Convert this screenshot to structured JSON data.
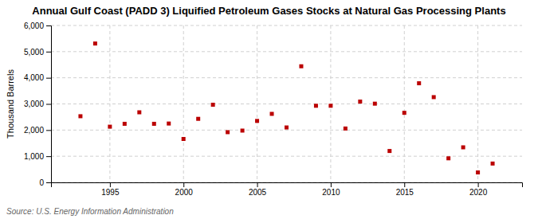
{
  "chart_data": {
    "type": "scatter",
    "title": "Annual Gulf Coast (PADD 3) Liquified Petroleum Gases Stocks at Natural Gas Processing Plants",
    "ylabel": "Thousand Barrels",
    "source": "Source: U.S. Energy Information Administration",
    "x": [
      1993,
      1994,
      1995,
      1996,
      1997,
      1998,
      1999,
      2000,
      2001,
      2002,
      2003,
      2004,
      2005,
      2006,
      2007,
      2008,
      2009,
      2010,
      2011,
      2012,
      2013,
      2014,
      2015,
      2016,
      2017,
      2018,
      2019,
      2020,
      2021
    ],
    "values": [
      2530,
      5310,
      2130,
      2240,
      2680,
      2240,
      2250,
      1660,
      2430,
      2970,
      1920,
      1980,
      2350,
      2620,
      2100,
      4440,
      2930,
      2930,
      2060,
      3090,
      3010,
      1200,
      2660,
      3790,
      3260,
      920,
      1340,
      380,
      720
    ],
    "color": "#bb0000",
    "marker": "square",
    "xlim": [
      1991,
      2023
    ],
    "xticks": [
      1995,
      2000,
      2005,
      2010,
      2015,
      2020
    ],
    "ylim": [
      0,
      6000
    ],
    "yticks": [
      0,
      {
        "value": 1000,
        "label": "1,000"
      },
      {
        "value": 2000,
        "label": "2,000"
      },
      {
        "value": 3000,
        "label": "3,000"
      },
      {
        "value": 4000,
        "label": "4,000"
      },
      {
        "value": 5000,
        "label": "5,000"
      },
      {
        "value": 6000,
        "label": "6,000"
      }
    ],
    "grid": true
  }
}
